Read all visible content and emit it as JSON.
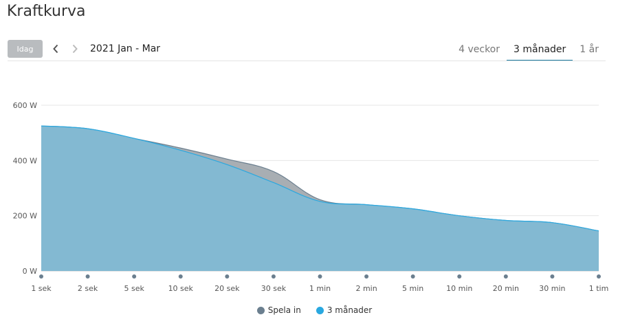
{
  "page": {
    "title": "Kraftkurva"
  },
  "toolbar": {
    "today_label": "Idag",
    "period_label": "2021 Jan - Mar",
    "prev_icon": "chevron-left-icon",
    "next_icon": "chevron-right-icon",
    "tabs": [
      {
        "label": "4 veckor",
        "active": false
      },
      {
        "label": "3 månader",
        "active": true
      },
      {
        "label": "1 år",
        "active": false
      }
    ]
  },
  "chart_data": {
    "type": "area",
    "title": "",
    "xlabel": "",
    "ylabel": "",
    "categories": [
      "1 sek",
      "2 sek",
      "5 sek",
      "10 sek",
      "20 sek",
      "30 sek",
      "1 min",
      "2 min",
      "5 min",
      "10 min",
      "20 min",
      "30 min",
      "1 tim"
    ],
    "y_ticks": [
      "0 W",
      "200 W",
      "400 W",
      "600 W"
    ],
    "y_tick_values": [
      0,
      200,
      400,
      600
    ],
    "ylim": [
      0,
      600
    ],
    "grid": true,
    "legend_position": "bottom",
    "series": [
      {
        "name": "Spela in",
        "color": "#6b7f8f",
        "fill": "#a8aeb3",
        "values": [
          525,
          515,
          480,
          445,
          405,
          360,
          258,
          240,
          225,
          200,
          183,
          175,
          145
        ]
      },
      {
        "name": "3 månader",
        "color": "#29a8e0",
        "fill": "#82b9d3",
        "values": [
          525,
          515,
          480,
          437,
          385,
          320,
          252,
          240,
          225,
          200,
          183,
          175,
          145
        ]
      }
    ]
  }
}
